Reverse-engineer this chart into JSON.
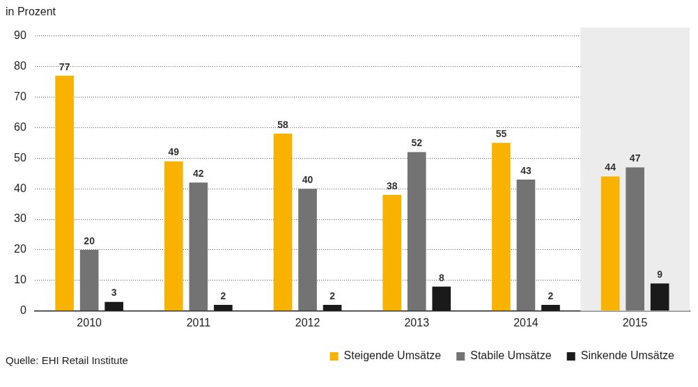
{
  "chart_data": {
    "type": "bar",
    "ylabel": "in Prozent",
    "categories": [
      "2010",
      "2011",
      "2012",
      "2013",
      "2014",
      "2015"
    ],
    "series": [
      {
        "name": "Steigende Umsätze",
        "color": "#f9b200",
        "values": [
          77,
          49,
          58,
          38,
          55,
          44
        ]
      },
      {
        "name": "Stabile Umsätze",
        "color": "#737373",
        "values": [
          20,
          42,
          40,
          52,
          43,
          47
        ]
      },
      {
        "name": "Sinkende Umsätze",
        "color": "#1a1a1a",
        "values": [
          3,
          2,
          2,
          8,
          2,
          9
        ]
      }
    ],
    "ylim": [
      0,
      90
    ],
    "yticks": [
      0,
      10,
      20,
      30,
      40,
      50,
      60,
      70,
      80,
      90
    ],
    "grid": "y",
    "data_labels": true,
    "legend": "bottom right",
    "bands": [
      {
        "axis": "x",
        "from": "2015",
        "to": "2015",
        "color": "#ececec"
      }
    ],
    "annotations": [
      "Quelle: EHI Retail Institute"
    ]
  }
}
